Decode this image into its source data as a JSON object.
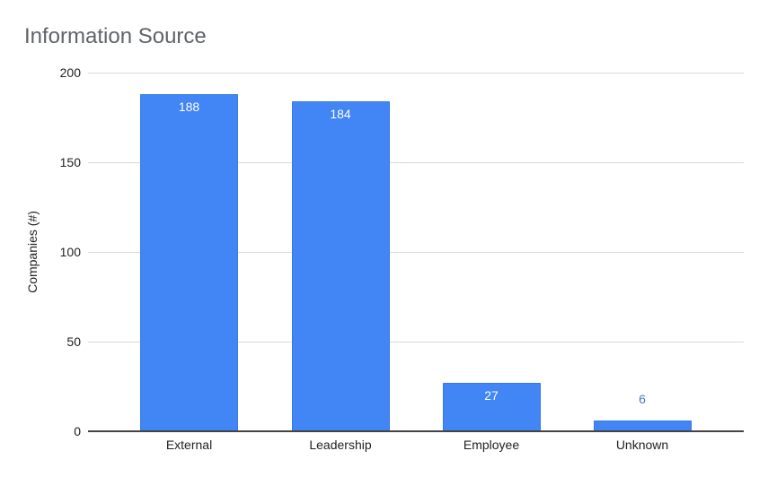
{
  "chart_data": {
    "type": "bar",
    "title": "Information Source",
    "xlabel": "",
    "ylabel": "Companies (#)",
    "categories": [
      "External",
      "Leadership",
      "Employee",
      "Unknown"
    ],
    "values": [
      188,
      184,
      27,
      6
    ],
    "data_labels": [
      "188",
      "184",
      "27",
      "6"
    ],
    "ylim": [
      0,
      200
    ],
    "yticks": [
      0,
      50,
      100,
      150,
      200
    ],
    "ytick_labels": [
      "0",
      "50",
      "100",
      "150",
      "200"
    ],
    "grid": true,
    "legend": null,
    "bar_color": "#4285f4"
  }
}
